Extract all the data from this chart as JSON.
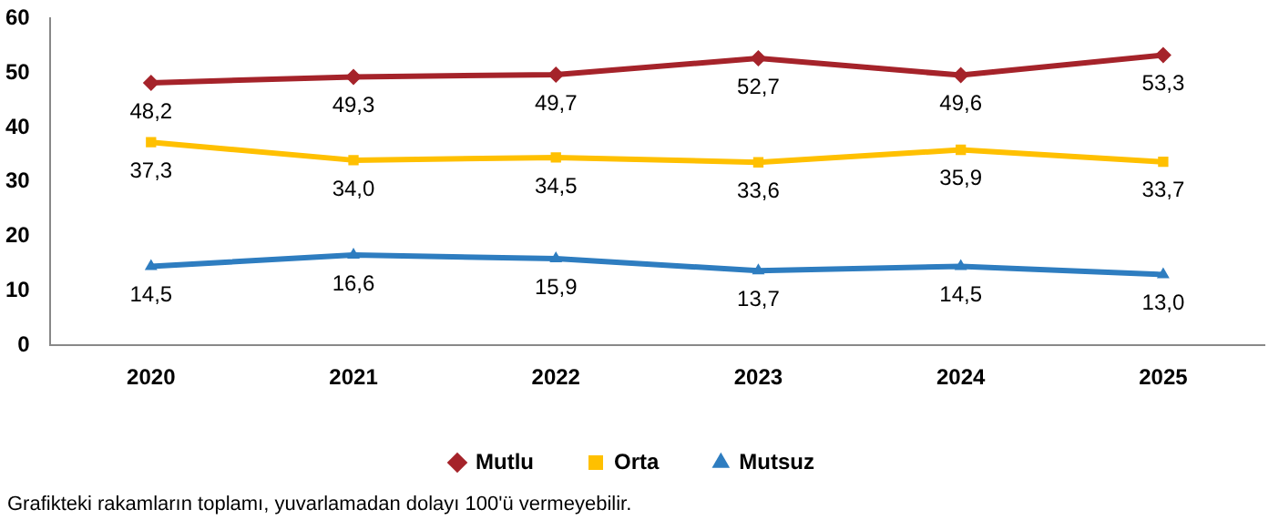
{
  "chart_data": {
    "type": "line",
    "categories": [
      "2020",
      "2021",
      "2022",
      "2023",
      "2024",
      "2025"
    ],
    "series": [
      {
        "name": "Mutlu",
        "color": "#a5232a",
        "marker": "diamond",
        "values": [
          48.2,
          49.3,
          49.7,
          52.7,
          49.6,
          53.3
        ],
        "value_labels": [
          "48,2",
          "49,3",
          "49,7",
          "52,7",
          "49,6",
          "53,3"
        ]
      },
      {
        "name": "Orta",
        "color": "#ffc000",
        "marker": "square",
        "values": [
          37.3,
          34.0,
          34.5,
          33.6,
          35.9,
          33.7
        ],
        "value_labels": [
          "37,3",
          "34,0",
          "34,5",
          "33,6",
          "35,9",
          "33,7"
        ]
      },
      {
        "name": "Mutsuz",
        "color": "#2e7dc0",
        "marker": "triangle",
        "values": [
          14.5,
          16.6,
          15.9,
          13.7,
          14.5,
          13.0
        ],
        "value_labels": [
          "14,5",
          "16,6",
          "15,9",
          "13,7",
          "14,5",
          "13,0"
        ]
      }
    ],
    "ylim": [
      0,
      60
    ],
    "yticks": [
      0,
      10,
      20,
      30,
      40,
      50,
      60
    ],
    "grid": false,
    "legend": "bottom",
    "annotations": [
      "Grafikteki rakamların toplamı, yuvarlamadan dolayı 100'ü vermeyebilir."
    ]
  }
}
